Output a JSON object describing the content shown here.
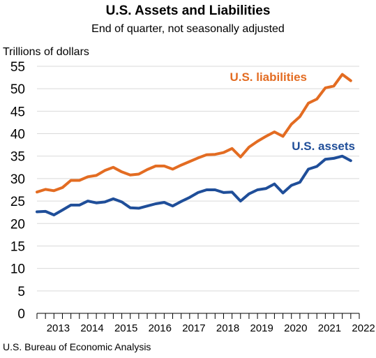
{
  "title": "U.S. Assets and Liabilities",
  "subtitle": "End of quarter, not seasonally adjusted",
  "source": "U.S. Bureau of Economic Analysis",
  "chart_data": {
    "type": "line",
    "ylabel": "Trillions of dollars",
    "ylim": [
      0,
      55
    ],
    "yticks": [
      0,
      5,
      10,
      15,
      20,
      25,
      30,
      35,
      40,
      45,
      50,
      55
    ],
    "grid": "horizontal",
    "legend": "inline labels at series ends",
    "x_tick_labels": [
      "2013",
      "2014",
      "2015",
      "2016",
      "2017",
      "2018",
      "2019",
      "2020",
      "2021",
      "2022"
    ],
    "x": [
      "2012 Q4",
      "2013 Q1",
      "2013 Q2",
      "2013 Q3",
      "2013 Q4",
      "2014 Q1",
      "2014 Q2",
      "2014 Q3",
      "2014 Q4",
      "2015 Q1",
      "2015 Q2",
      "2015 Q3",
      "2015 Q4",
      "2016 Q1",
      "2016 Q2",
      "2016 Q3",
      "2016 Q4",
      "2017 Q1",
      "2017 Q2",
      "2017 Q3",
      "2017 Q4",
      "2018 Q1",
      "2018 Q2",
      "2018 Q3",
      "2018 Q4",
      "2019 Q1",
      "2019 Q2",
      "2019 Q3",
      "2019 Q4",
      "2020 Q1",
      "2020 Q2",
      "2020 Q3",
      "2020 Q4",
      "2021 Q1",
      "2021 Q2",
      "2021 Q3",
      "2021 Q4",
      "2022 Q1",
      "2022 Q2"
    ],
    "series": [
      {
        "name": "U.S. liabilities",
        "color": "#e36c22",
        "values": [
          27.0,
          27.6,
          27.3,
          28.0,
          29.6,
          29.6,
          30.4,
          30.7,
          31.8,
          32.5,
          31.5,
          30.8,
          31.0,
          32.0,
          32.8,
          32.8,
          32.1,
          33.0,
          33.8,
          34.6,
          35.3,
          35.4,
          35.8,
          36.7,
          34.8,
          37.0,
          38.3,
          39.4,
          40.4,
          39.4,
          42.1,
          43.8,
          46.8,
          47.7,
          50.2,
          50.6,
          53.2,
          51.8,
          null
        ]
      },
      {
        "name": "U.S. assets",
        "color": "#1f4e99",
        "values": [
          22.6,
          22.7,
          21.9,
          23.0,
          24.1,
          24.1,
          25.0,
          24.6,
          24.8,
          25.5,
          24.8,
          23.5,
          23.4,
          23.9,
          24.4,
          24.7,
          23.9,
          24.9,
          25.8,
          26.9,
          27.5,
          27.5,
          26.9,
          27.0,
          25.0,
          26.6,
          27.5,
          27.8,
          28.8,
          26.8,
          28.5,
          29.2,
          32.1,
          32.7,
          34.3,
          34.5,
          35.0,
          34.0,
          null
        ]
      }
    ]
  }
}
